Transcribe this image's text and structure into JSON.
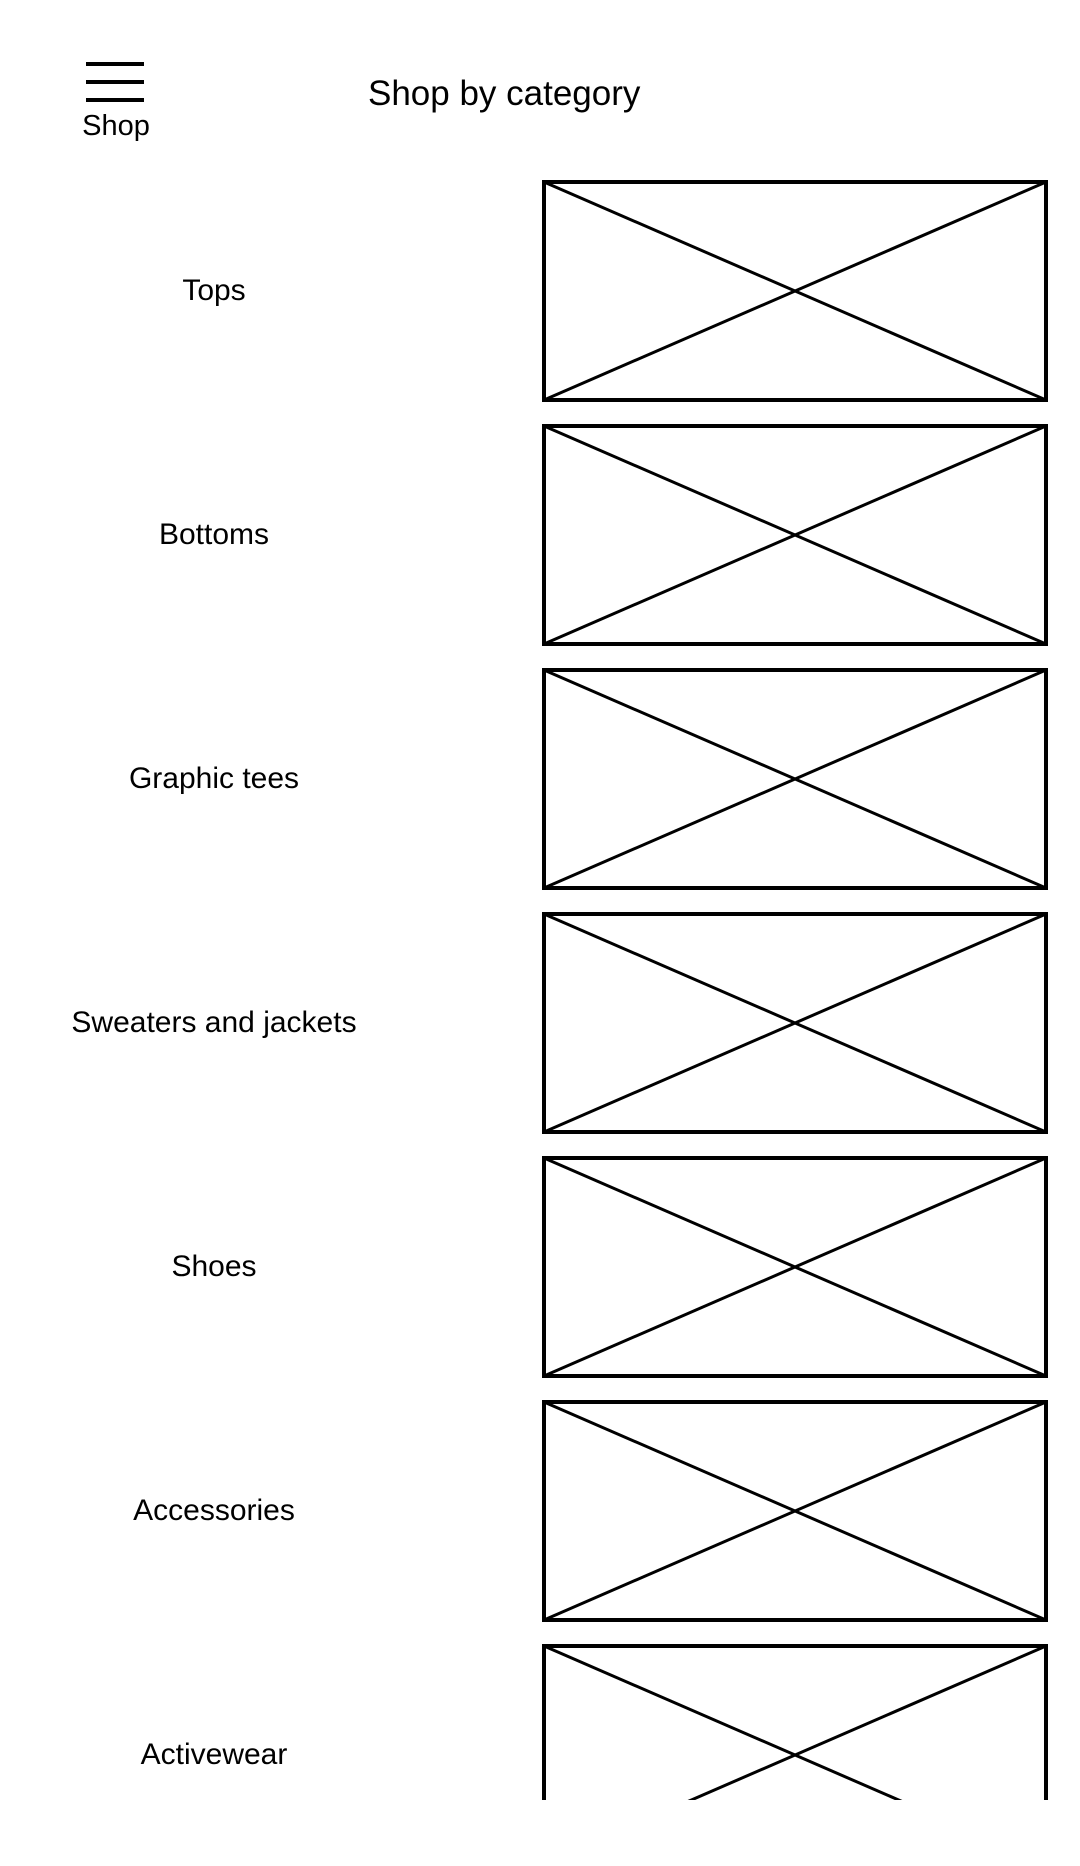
{
  "header": {
    "menu_label": "Shop",
    "title": "Shop by category",
    "menu_icon": "hamburger-icon"
  },
  "categories": [
    {
      "label": "Tops",
      "image_icon": "image-placeholder-icon"
    },
    {
      "label": "Bottoms",
      "image_icon": "image-placeholder-icon"
    },
    {
      "label": "Graphic tees",
      "image_icon": "image-placeholder-icon"
    },
    {
      "label": "Sweaters and jackets",
      "image_icon": "image-placeholder-icon"
    },
    {
      "label": "Shoes",
      "image_icon": "image-placeholder-icon"
    },
    {
      "label": "Accessories",
      "image_icon": "image-placeholder-icon"
    },
    {
      "label": "Activewear",
      "image_icon": "image-placeholder-icon"
    }
  ]
}
